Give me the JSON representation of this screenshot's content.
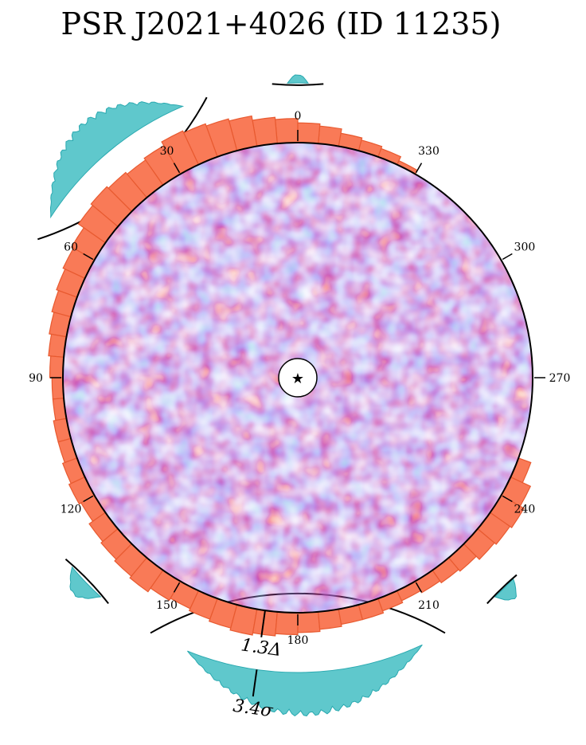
{
  "chart_data": {
    "type": "heatmap",
    "title": "PSR J2021+4026 (ID 11235)",
    "projection": "polar disk, angle ticks in degrees counter-clockwise from top",
    "angle_ticks": [
      "0",
      "30",
      "60",
      "90",
      "120",
      "150",
      "180",
      "210",
      "240",
      "270",
      "300",
      "330"
    ],
    "center_marker": "★",
    "inner_histogram": {
      "name": "",
      "color": "#f97a57",
      "edge_color": "#e85a30",
      "bins_deg": 5,
      "relative_heights": [
        0.55,
        0.6,
        0.7,
        0.75,
        0.8,
        0.85,
        0.75,
        0.7,
        0.75,
        0.8,
        0.75,
        0.6,
        0.55,
        0.5,
        0.45,
        0.4,
        0.35,
        0.3,
        0.25,
        0.25,
        0.3,
        0.3,
        0.35,
        0.4,
        0.35,
        0.45,
        0.5,
        0.55,
        0.6,
        0.5,
        0.45,
        0.5,
        0.55,
        0.6,
        0.55,
        0.5,
        0.45,
        0.4,
        0.35,
        0.35,
        0.3,
        0.25,
        0.3,
        0.35,
        0.4,
        0.5,
        0.55,
        0.6,
        0.5,
        0.3,
        0.0,
        0.0,
        0.0,
        0.0,
        0.0,
        0.0,
        0.0,
        0.0,
        0.0,
        0.0,
        0.0,
        0.0,
        0.0,
        0.0,
        0.0,
        0.0,
        0.1,
        0.2,
        0.25,
        0.3,
        0.4,
        0.45
      ]
    },
    "outer_histogram": {
      "name": "",
      "color": "#5fc8cc",
      "edge_color": "#2aa9b0",
      "segments": [
        {
          "from_deg": 23,
          "to_deg": 57,
          "peak": 0.9
        },
        {
          "from_deg": 130,
          "to_deg": 138,
          "peak": 0.4
        },
        {
          "from_deg": 158,
          "to_deg": 205,
          "peak": 1.0
        },
        {
          "from_deg": 222,
          "to_deg": 227,
          "peak": 0.35
        },
        {
          "from_deg": 358,
          "to_deg": 362,
          "peak": 0.2
        }
      ]
    },
    "annotations": [
      {
        "text": "1.3Δ",
        "angle_deg": 172
      },
      {
        "text": "3.4σ",
        "angle_deg": 172
      }
    ]
  }
}
